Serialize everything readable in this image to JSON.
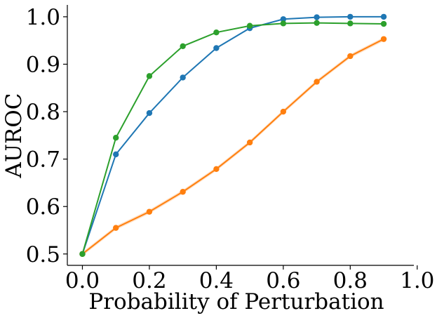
{
  "chart_data": {
    "type": "line",
    "title": "",
    "xlabel": "Probability of Perturbation",
    "ylabel": "AUROC",
    "xlim": [
      -0.045,
      0.99
    ],
    "ylim": [
      0.476,
      1.025
    ],
    "xticks": [
      0.0,
      0.2,
      0.4,
      0.6,
      0.8,
      1.0
    ],
    "xtick_labels": [
      "0.0",
      "0.2",
      "0.4",
      "0.6",
      "0.8",
      "1.0"
    ],
    "yticks": [
      0.5,
      0.6,
      0.7,
      0.8,
      0.9,
      1.0
    ],
    "ytick_labels": [
      "0.5",
      "0.6",
      "0.7",
      "0.8",
      "0.9",
      "1.0"
    ],
    "grid": false,
    "legend": "none",
    "x": [
      0.0,
      0.1,
      0.2,
      0.3,
      0.4,
      0.5,
      0.6,
      0.7,
      0.8,
      0.9
    ],
    "series": [
      {
        "color": "#1f77b4",
        "values": [
          0.5,
          0.71,
          0.797,
          0.872,
          0.934,
          0.976,
          0.995,
          0.999,
          1.0,
          1.0
        ]
      },
      {
        "color": "#ff7f0e",
        "values": [
          0.5,
          0.555,
          0.589,
          0.631,
          0.679,
          0.735,
          0.8,
          0.863,
          0.917,
          0.953
        ],
        "band": 0.004
      },
      {
        "color": "#2ca02c",
        "values": [
          0.5,
          0.745,
          0.875,
          0.938,
          0.967,
          0.981,
          0.986,
          0.987,
          0.986,
          0.985
        ]
      }
    ]
  }
}
